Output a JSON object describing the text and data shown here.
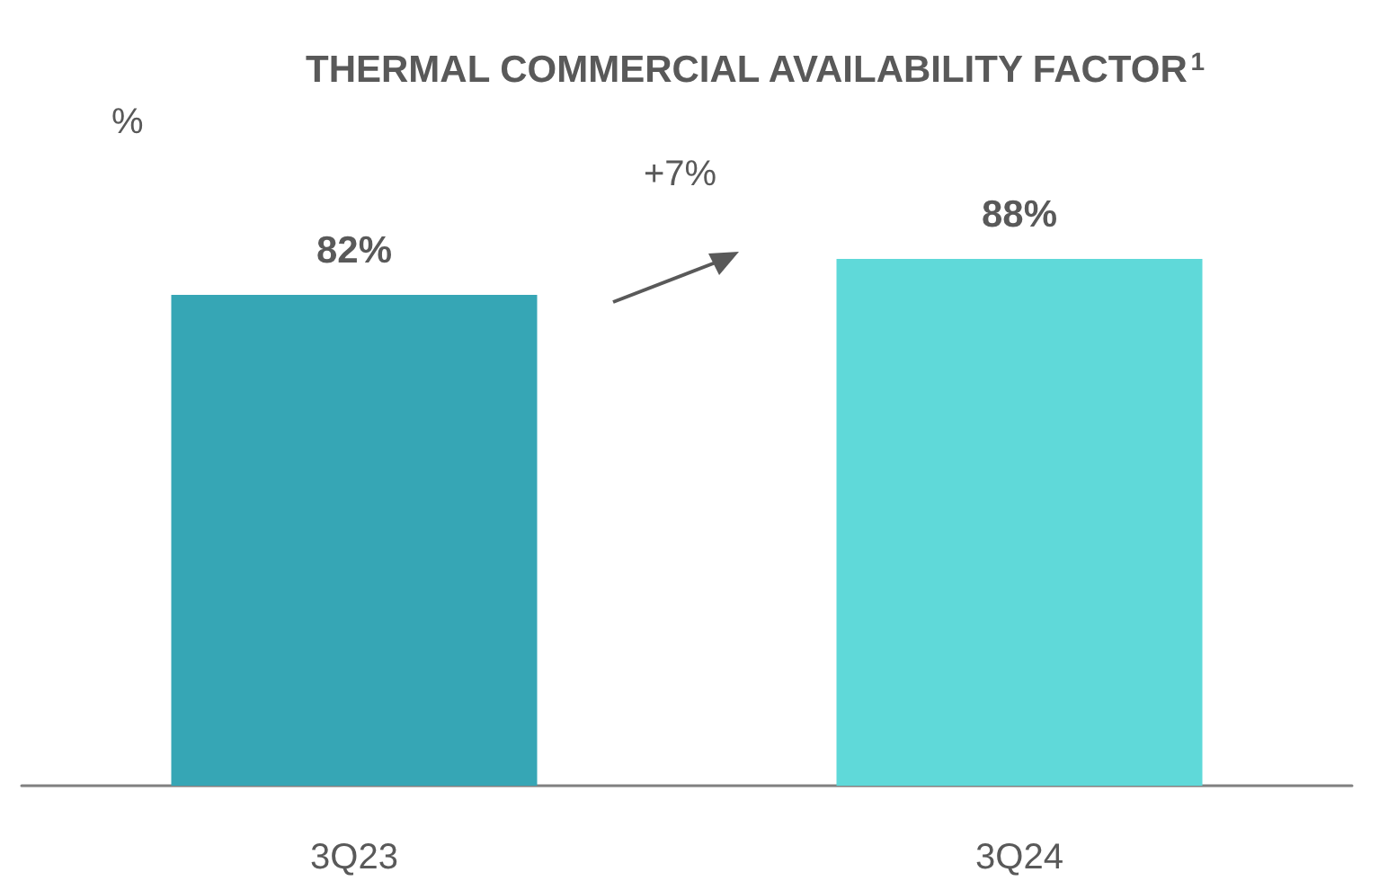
{
  "chart_data": {
    "type": "bar",
    "title": "THERMAL COMMERCIAL AVAILABILITY FACTOR$^{1}$",
    "ylabel": "%",
    "categories": [
      "3Q23",
      "3Q24"
    ],
    "values": [
      82,
      88
    ],
    "colors": [
      "#36a6b5",
      "#5fd9d9"
    ],
    "value_labels": [
      "82%",
      "88%"
    ],
    "annotations": [
      "+7%"
    ]
  }
}
